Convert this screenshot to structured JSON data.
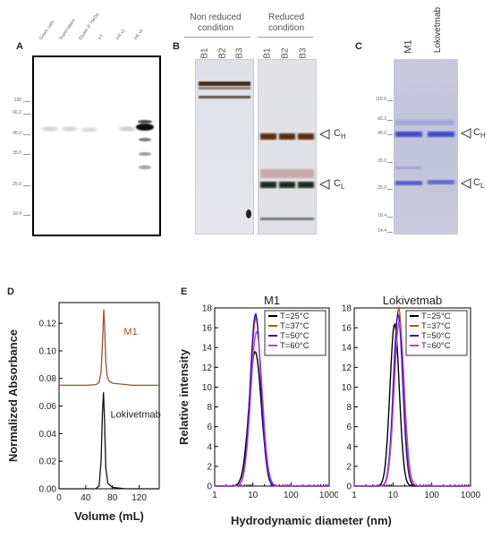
{
  "panelA": {
    "label": "A",
    "lanes": [
      "Green cells",
      "Supernatant",
      "Eluate of 75kDa",
      "FT",
      "FR x1",
      "FR x5"
    ],
    "markers": [
      "130",
      "66.2",
      "45.0",
      "35.0",
      "25.0",
      "18.4"
    ]
  },
  "panelB": {
    "label": "B",
    "nonreduced_title": "Non reduced condition",
    "reduced_title": "Reduced condition",
    "lanes": [
      "B1",
      "B2",
      "B3"
    ],
    "heavy": "C",
    "heavy_sub": "H",
    "light": "C",
    "light_sub": "L"
  },
  "panelC": {
    "label": "C",
    "lanes": [
      "M1",
      "Lokivetmab"
    ],
    "markers": [
      "116.0",
      "66.2",
      "45.0",
      "35.0",
      "25.0",
      "18.4",
      "14.4"
    ],
    "heavy": "C",
    "heavy_sub": "H",
    "light": "C",
    "light_sub": "L"
  },
  "panelD": {
    "label": "D"
  },
  "panelE": {
    "label": "E"
  },
  "chart_data": [
    {
      "type": "line",
      "panel": "D",
      "xlabel": "Volume (mL)",
      "ylabel": "Normalized Absorbance",
      "xlim": [
        0,
        150
      ],
      "ylim": [
        0,
        0.135
      ],
      "xticks": [
        "0",
        "40",
        "80",
        "120"
      ],
      "yticks": [
        "0.00",
        "0.02",
        "0.04",
        "0.06",
        "0.08",
        "0.10",
        "0.12"
      ],
      "series": [
        {
          "name": "M1",
          "color": "#a0522d",
          "x": [
            0,
            40,
            55,
            60,
            63,
            65,
            67,
            68,
            70,
            72,
            75,
            80,
            90,
            110,
            150
          ],
          "y": [
            0.075,
            0.075,
            0.0755,
            0.077,
            0.085,
            0.105,
            0.13,
            0.12,
            0.092,
            0.082,
            0.078,
            0.0765,
            0.076,
            0.075,
            0.075
          ]
        },
        {
          "name": "Lokivetmab",
          "color": "#111111",
          "x": [
            0,
            40,
            55,
            60,
            63,
            65,
            66.5,
            68,
            70,
            73,
            80,
            100,
            150
          ],
          "y": [
            0.0,
            0.0,
            0.0,
            0.002,
            0.02,
            0.055,
            0.07,
            0.05,
            0.015,
            0.004,
            0.001,
            0.0,
            0.0
          ]
        }
      ]
    },
    {
      "type": "line",
      "panel": "E",
      "title": "M1",
      "xlabel": "Hydrodynamic diameter (nm)",
      "ylabel": "Relative intensity",
      "xscale": "log",
      "xlim": [
        1,
        1000
      ],
      "ylim": [
        0,
        18
      ],
      "xticks": [
        "1",
        "10",
        "100",
        "1000"
      ],
      "yticks": [
        "0",
        "2",
        "4",
        "6",
        "8",
        "10",
        "12",
        "14",
        "16",
        "18"
      ],
      "legend_position": "top-right",
      "series": [
        {
          "name": "T=25°C",
          "color": "#000000",
          "peak_x": 11.5,
          "peak_y": 13.6,
          "width": 0.16
        },
        {
          "name": "T=37°C",
          "color": "#b5532a",
          "peak_x": 12.0,
          "peak_y": 17.0,
          "width": 0.14
        },
        {
          "name": "T=50°C",
          "color": "#3a0ca3",
          "peak_x": 11.8,
          "peak_y": 17.4,
          "width": 0.14
        },
        {
          "name": "T=60°C",
          "color": "#a64bd6",
          "peak_x": 12.5,
          "peak_y": 15.6,
          "width": 0.15
        }
      ]
    },
    {
      "type": "line",
      "panel": "E",
      "title": "Lokivetmab",
      "xlabel": "Hydrodynamic diameter (nm)",
      "ylabel": "",
      "xscale": "log",
      "xlim": [
        1,
        1000
      ],
      "ylim": [
        0,
        18
      ],
      "xticks": [
        "1",
        "10",
        "100",
        "1000"
      ],
      "yticks": [
        "0",
        "2",
        "4",
        "6",
        "8",
        "10",
        "12",
        "14",
        "16",
        "18"
      ],
      "legend_position": "top-right",
      "series": [
        {
          "name": "T=25°C",
          "color": "#000000",
          "peak_x": 11.0,
          "peak_y": 16.4,
          "width": 0.12
        },
        {
          "name": "T=37°C",
          "color": "#b5532a",
          "peak_x": 14.0,
          "peak_y": 18.0,
          "width": 0.12
        },
        {
          "name": "T=50°C",
          "color": "#3a0ca3",
          "peak_x": 13.5,
          "peak_y": 17.4,
          "width": 0.12
        },
        {
          "name": "T=60°C",
          "color": "#a64bd6",
          "peak_x": 14.5,
          "peak_y": 16.6,
          "width": 0.13
        }
      ]
    }
  ]
}
